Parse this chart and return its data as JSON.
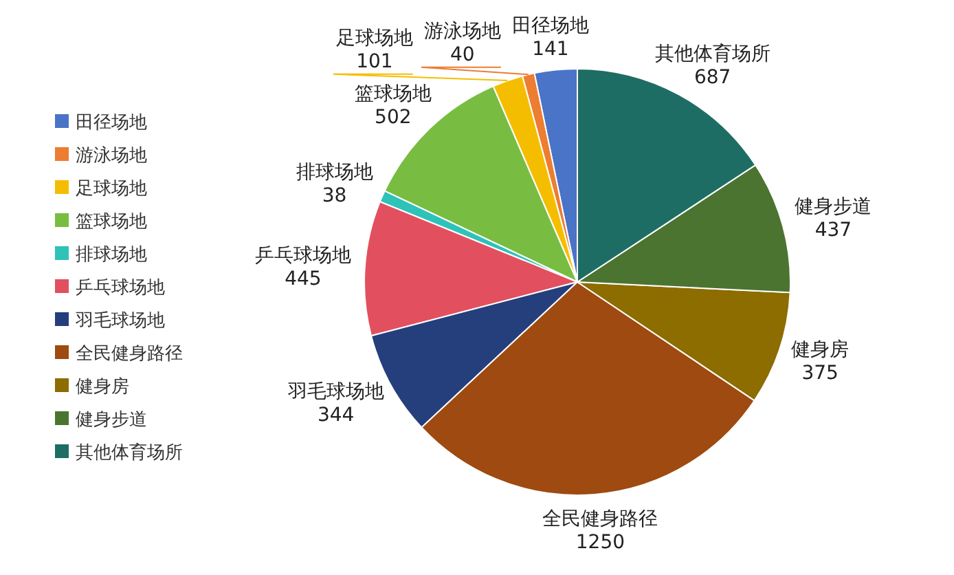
{
  "chart_data": {
    "type": "pie",
    "categories": [
      "田径场地",
      "游泳场地",
      "足球场地",
      "篮球场地",
      "排球场地",
      "乒乓球场地",
      "羽毛球场地",
      "全民健身路径",
      "健身房",
      "健身步道",
      "其他体育场所"
    ],
    "values": [
      141,
      40,
      101,
      502,
      38,
      445,
      344,
      1250,
      375,
      437,
      687
    ],
    "colors": [
      "#4a74c8",
      "#ed7d31",
      "#f5bd00",
      "#78bd42",
      "#2ec2b9",
      "#e2505f",
      "#243f7c",
      "#9e4a10",
      "#8d6c00",
      "#4b7430",
      "#1e6d64"
    ],
    "data_labels": true,
    "legend": "left"
  }
}
